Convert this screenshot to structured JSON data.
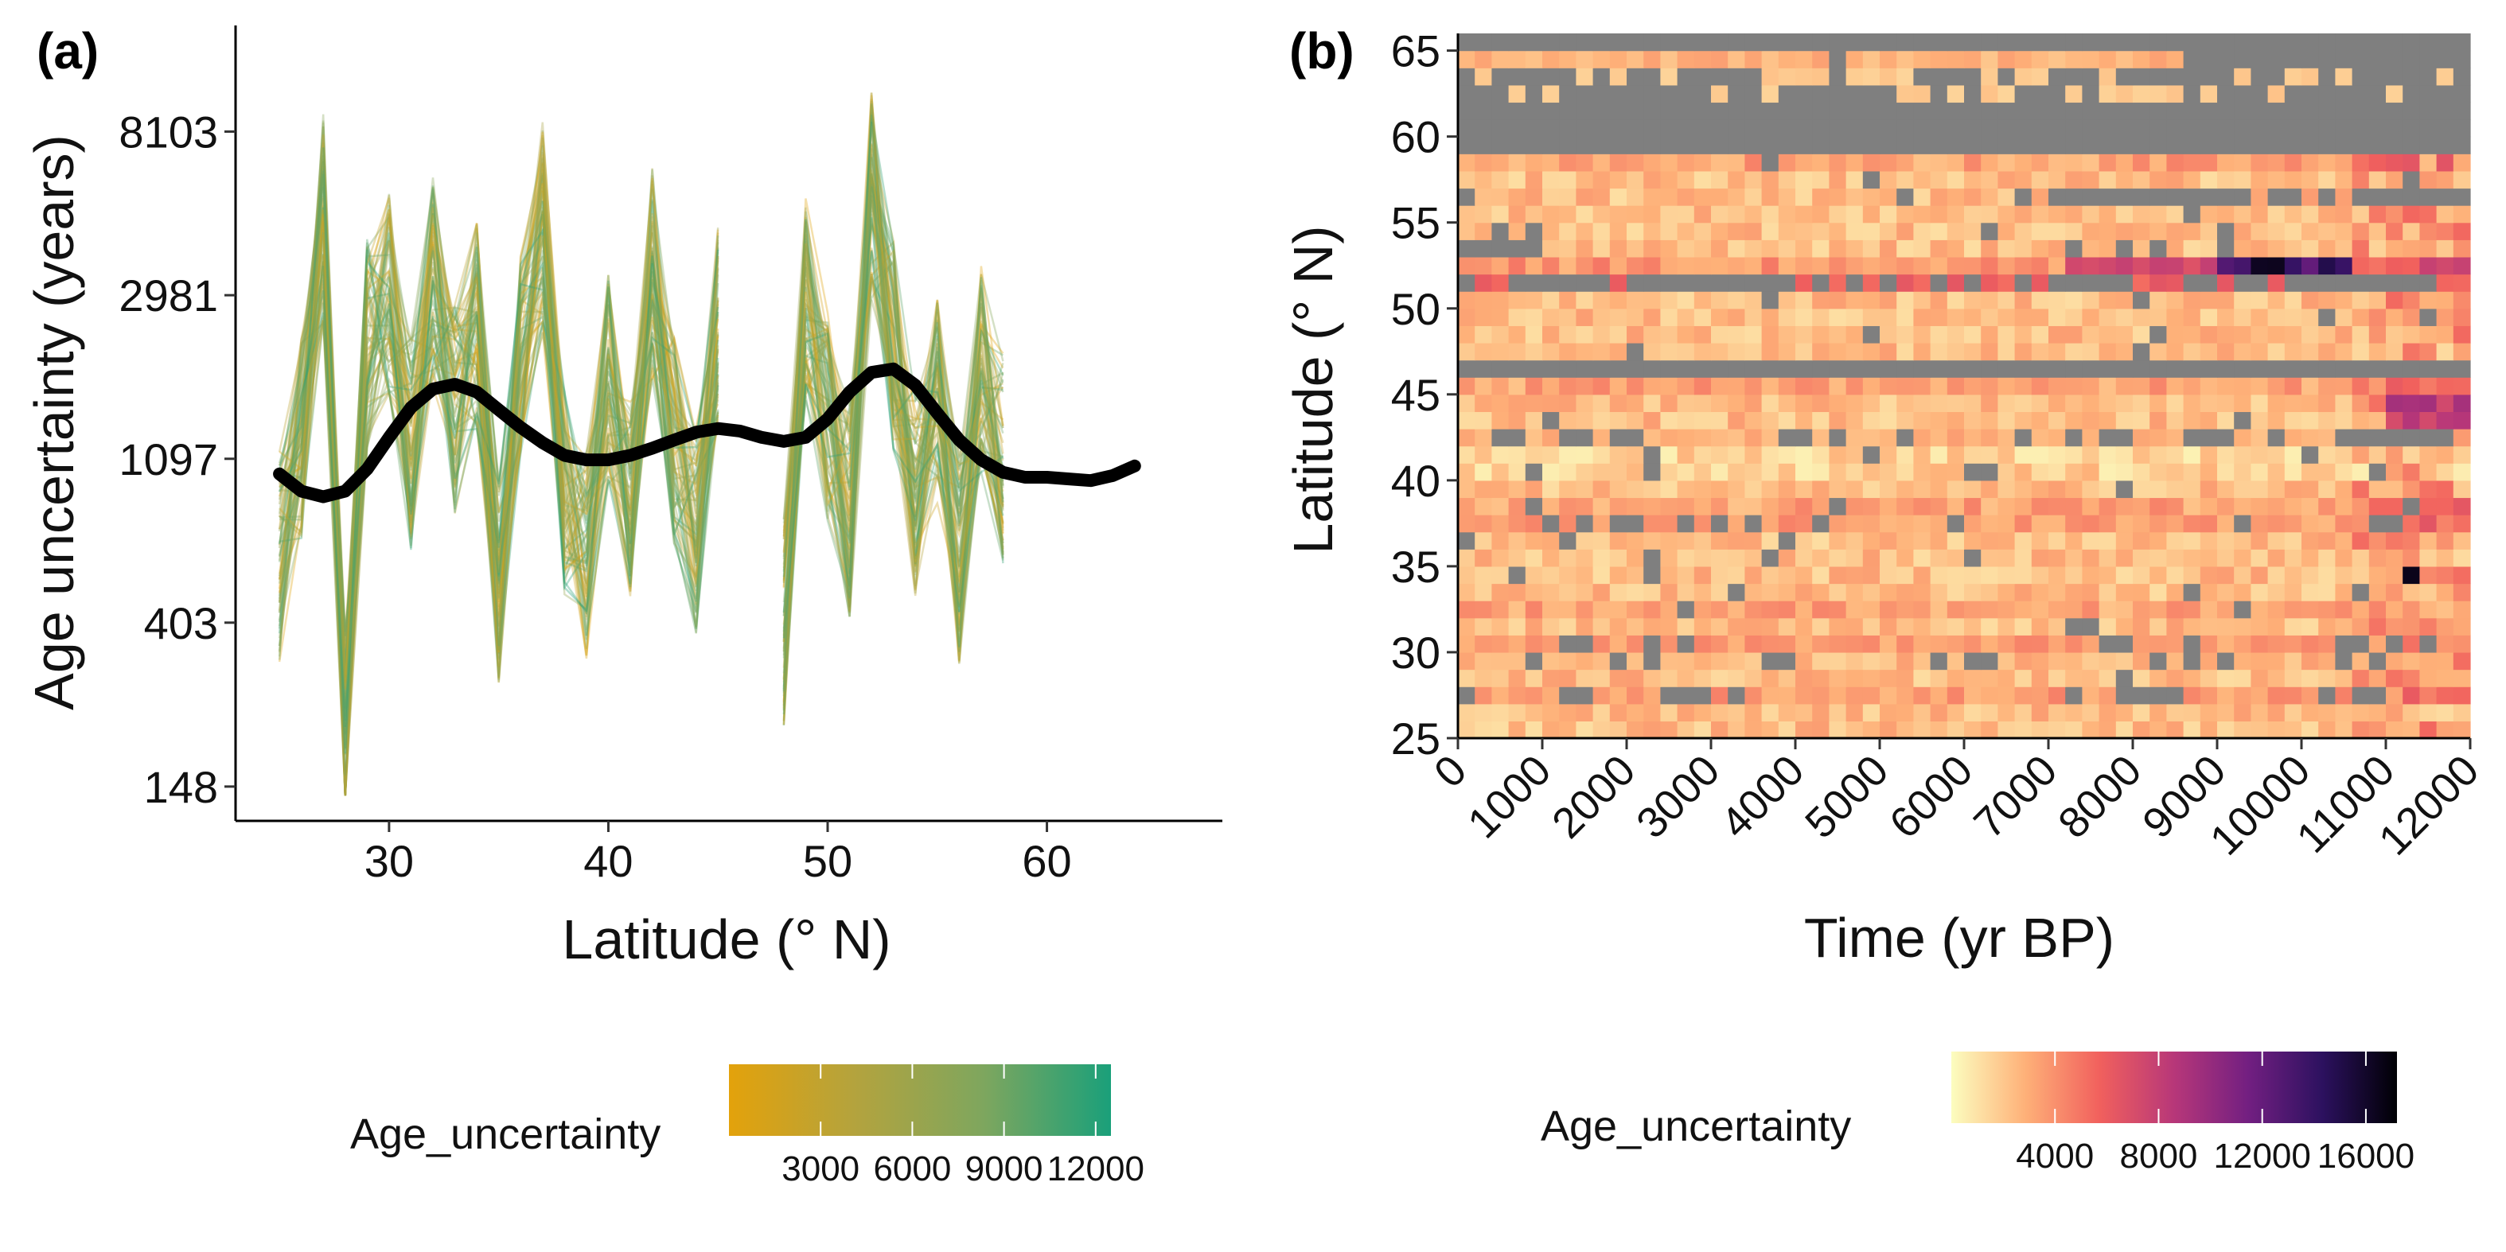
{
  "chart_data": [
    {
      "panel_label": "(a)",
      "type": "line",
      "xlabel": "Latitude (° N)",
      "ylabel": "Age uncertainty (years)",
      "xlim": [
        23,
        68
      ],
      "x_ticks": [
        30,
        40,
        50,
        60
      ],
      "y_scale": "log",
      "y_ticks": [
        148,
        403,
        1097,
        2981,
        8103
      ],
      "ylim": [
        120,
        15500
      ],
      "grid": false,
      "series": [
        {
          "description": "fitted trend (thick black)",
          "color": "#000000",
          "x": [
            25,
            26,
            27,
            28,
            29,
            30,
            31,
            32,
            33,
            34,
            35,
            36,
            37,
            38,
            39,
            40,
            41,
            42,
            43,
            44,
            45,
            46,
            47,
            48,
            49,
            50,
            51,
            52,
            53,
            54,
            55,
            56,
            57,
            58,
            59,
            60,
            61,
            62,
            63,
            64
          ],
          "values": [
            1000,
            900,
            870,
            900,
            1030,
            1250,
            1500,
            1680,
            1730,
            1650,
            1480,
            1330,
            1210,
            1120,
            1090,
            1090,
            1120,
            1170,
            1230,
            1290,
            1320,
            1300,
            1250,
            1220,
            1250,
            1400,
            1650,
            1860,
            1900,
            1720,
            1450,
            1230,
            1090,
            1010,
            980,
            980,
            970,
            960,
            990,
            1050
          ]
        },
        {
          "description": "individual sample traces (coloured by Age_uncertainty)",
          "x": [
            25,
            26,
            27,
            28,
            29,
            30,
            31,
            32,
            33,
            34,
            35,
            36,
            37,
            38,
            39,
            40,
            41,
            42,
            43,
            44,
            45,
            46,
            47,
            48,
            49,
            50,
            51,
            52,
            53,
            54,
            55,
            56,
            57,
            58,
            59,
            60,
            61,
            62,
            63,
            64
          ],
          "values": [
            600,
            1200,
            4800,
            200,
            2200,
            3000,
            1200,
            3200,
            1500,
            2500,
            500,
            2100,
            4500,
            900,
            600,
            1800,
            900,
            3400,
            1200,
            700,
            2400,
            null,
            null,
            400,
            3000,
            1400,
            800,
            5500,
            2200,
            900,
            1600,
            600,
            1900,
            1100,
            null,
            null,
            null,
            null,
            null,
            2400
          ]
        }
      ],
      "legend": {
        "title": "Age_uncertainty",
        "position": "bottom",
        "colors": [
          "#E3A20B",
          "#B3A33E",
          "#7EA65E",
          "#1AA07A"
        ],
        "range": [
          0,
          12500
        ],
        "labels": [
          "3000",
          "6000",
          "9000",
          "12000"
        ],
        "label_values": [
          3000,
          6000,
          9000,
          12000
        ]
      }
    },
    {
      "panel_label": "(b)",
      "type": "heatmap",
      "xlabel": "Time (yr BP)",
      "ylabel": "Latitude (° N)",
      "xlim": [
        0,
        12000
      ],
      "x_ticks": [
        0,
        1000,
        2000,
        3000,
        4000,
        5000,
        6000,
        7000,
        8000,
        9000,
        10000,
        11000,
        12000
      ],
      "ylim": [
        25,
        66
      ],
      "y_ticks": [
        25,
        30,
        35,
        40,
        45,
        50,
        55,
        60,
        65
      ],
      "cell_size": {
        "time": 200,
        "latitude": 1
      },
      "missing_color": "#7F7F7F",
      "rows": [
        {
          "lat": 65,
          "values": "all missing"
        },
        {
          "lat": 64,
          "values": "~2500 in 0–4200 and 4600–8500 yr BP; missing after"
        },
        {
          "lat": 63,
          "values": "sparse ~2000–3000; mostly missing"
        },
        {
          "lat": 62,
          "values": "sparse ~1500; mostly missing"
        },
        {
          "lat": 61,
          "values": "all missing"
        },
        {
          "lat": 60,
          "values": "all missing"
        },
        {
          "lat": 59,
          "values": "all missing"
        },
        {
          "lat": 58,
          "values": "~2500–4000"
        },
        {
          "lat": 57,
          "values": "~1500–2500 with gaps"
        },
        {
          "lat": 56,
          "values": "~1500–2500, missing after 6500 yr BP"
        },
        {
          "lat": 55,
          "values": "~1500–2500"
        },
        {
          "lat": 54,
          "values": "~1500–2000"
        },
        {
          "lat": 53,
          "values": "missing 0–800 yr BP, ~2000 after"
        },
        {
          "lat": 52,
          "values": "rising from ~3000 to ~14000–16000 near 9000–10500 yr BP"
        },
        {
          "lat": 51,
          "values": "mostly missing with ~2500–6000 patches"
        },
        {
          "lat": 50,
          "values": "~1500–2500"
        },
        {
          "lat": 49,
          "values": "~1500–3000, ~6000 near 11800 yr BP"
        },
        {
          "lat": 48,
          "values": "~1500–2000"
        },
        {
          "lat": 47,
          "values": "~1500–2000"
        },
        {
          "lat": 46,
          "values": "all missing"
        },
        {
          "lat": 45,
          "values": "~2000–4000"
        },
        {
          "lat": 44,
          "values": "~2500–4000, ~7000–9000 after 10800 yr BP"
        },
        {
          "lat": 43,
          "values": "~1500–2500, ~8000 after 10800 yr BP"
        },
        {
          "lat": 42,
          "values": "~2000 with frequent missing cells"
        },
        {
          "lat": 41,
          "values": "~1500–2000"
        },
        {
          "lat": 40,
          "values": "~1000–1500"
        },
        {
          "lat": 39,
          "values": "~1000–1500"
        },
        {
          "lat": 38,
          "values": "~2000–3000"
        },
        {
          "lat": 37,
          "values": "~2500–6000 with missing cells"
        },
        {
          "lat": 36,
          "values": "~2000–3000"
        },
        {
          "lat": 35,
          "values": "~1500–2500"
        },
        {
          "lat": 34,
          "values": "~1500–2500; ~16000 at ~11200 yr BP"
        },
        {
          "lat": 33,
          "values": "~1500–2500"
        },
        {
          "lat": 32,
          "values": "~2500–3500"
        },
        {
          "lat": 31,
          "values": "~2000–3000"
        },
        {
          "lat": 30,
          "values": "~2000–5000 with missing cells"
        },
        {
          "lat": 29,
          "values": "~1500–2500 with missing cells"
        },
        {
          "lat": 28,
          "values": "~1500–2500"
        },
        {
          "lat": 27,
          "values": "~2500–4000 with missing cells"
        },
        {
          "lat": 26,
          "values": "~1500–2000"
        },
        {
          "lat": 25,
          "values": "~1500"
        }
      ],
      "legend": {
        "title": "Age_uncertainty",
        "position": "bottom",
        "colors": [
          "#FCFDBF",
          "#FEB078",
          "#F1605D",
          "#B73779",
          "#721F81",
          "#2C115F",
          "#000004"
        ],
        "range": [
          0,
          17200
        ],
        "labels": [
          "4000",
          "8000",
          "12000",
          "16000"
        ],
        "label_values": [
          4000,
          8000,
          12000,
          16000
        ]
      }
    }
  ]
}
